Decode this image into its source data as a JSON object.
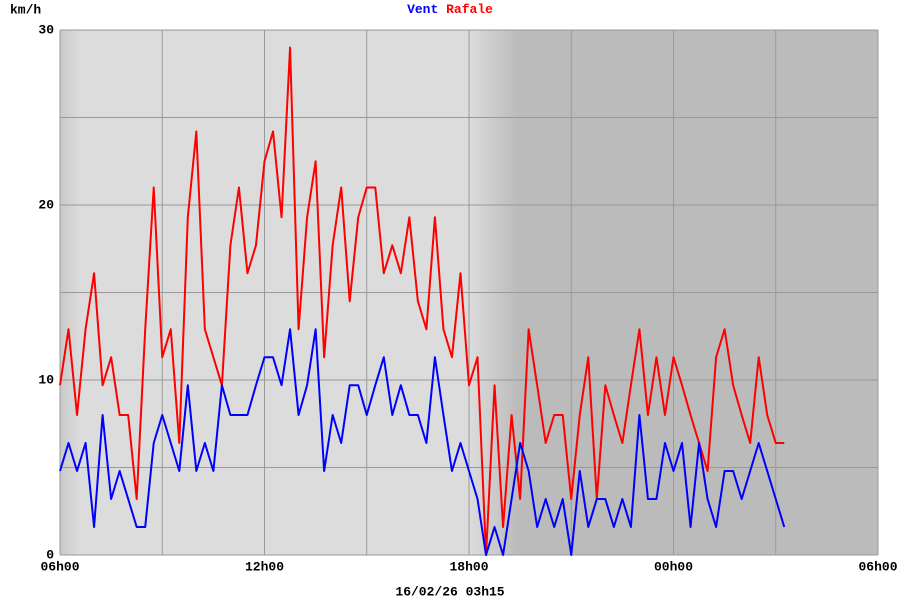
{
  "chart_data": {
    "type": "line",
    "y_label": "km/h",
    "x_label": "16/02/26 03h15",
    "x": [
      0,
      0.25,
      0.5,
      0.75,
      1,
      1.25,
      1.5,
      1.75,
      2,
      2.25,
      2.5,
      2.75,
      3,
      3.25,
      3.5,
      3.75,
      4,
      4.25,
      4.5,
      4.75,
      5,
      5.25,
      5.5,
      5.75,
      6,
      6.25,
      6.5,
      6.75,
      7,
      7.25,
      7.5,
      7.75,
      8,
      8.25,
      8.5,
      8.75,
      9,
      9.25,
      9.5,
      9.75,
      10,
      10.25,
      10.5,
      10.75,
      11,
      11.25,
      11.5,
      11.75,
      12,
      12.25,
      12.5,
      12.75,
      13,
      13.25,
      13.5,
      13.75,
      14,
      14.25,
      14.5,
      14.75,
      15,
      15.25,
      15.5,
      15.75,
      16,
      16.25,
      16.5,
      16.75,
      17,
      17.25,
      17.5,
      17.75,
      18,
      18.25,
      18.5,
      18.75,
      19,
      19.25,
      19.5,
      19.75,
      20,
      20.25,
      20.5,
      20.75,
      21,
      21.25
    ],
    "series": [
      {
        "name": "Vent",
        "color": "#0000ff",
        "values": [
          4.8,
          6.4,
          4.8,
          6.4,
          1.6,
          8,
          3.2,
          4.8,
          3.2,
          1.6,
          1.6,
          6.4,
          8,
          6.4,
          4.8,
          9.7,
          4.8,
          6.4,
          4.8,
          9.7,
          8,
          8,
          8,
          9.7,
          11.3,
          11.3,
          9.7,
          12.9,
          8,
          9.7,
          12.9,
          4.8,
          8,
          6.4,
          9.7,
          9.7,
          8,
          9.7,
          11.3,
          8,
          9.7,
          8,
          8,
          6.4,
          11.3,
          8,
          4.8,
          6.4,
          4.8,
          3.2,
          0,
          1.6,
          0,
          3.2,
          6.4,
          4.8,
          1.6,
          3.2,
          1.6,
          3.2,
          0,
          4.8,
          1.6,
          3.2,
          3.2,
          1.6,
          3.2,
          1.6,
          8,
          3.2,
          3.2,
          6.4,
          4.8,
          6.4,
          1.6,
          6.4,
          3.2,
          1.6,
          4.8,
          4.8,
          3.2,
          4.8,
          6.4,
          4.8,
          3.2,
          1.6
        ]
      },
      {
        "name": "Rafale",
        "color": "#ff0000",
        "values": [
          9.7,
          12.9,
          8,
          12.9,
          16.1,
          9.7,
          11.3,
          8,
          8,
          3.2,
          12.9,
          21,
          11.3,
          12.9,
          6.4,
          19.3,
          24.2,
          12.9,
          11.3,
          9.7,
          17.7,
          21,
          16.1,
          17.7,
          22.5,
          24.2,
          19.3,
          29,
          12.9,
          19.3,
          22.5,
          11.3,
          17.7,
          21,
          14.5,
          19.3,
          21,
          21,
          16.1,
          17.7,
          16.1,
          19.3,
          14.5,
          12.9,
          19.3,
          12.9,
          11.3,
          16.1,
          9.7,
          11.3,
          0,
          9.7,
          1.6,
          8,
          3.2,
          12.9,
          9.7,
          6.4,
          8,
          8,
          3.2,
          8,
          11.3,
          3.2,
          9.7,
          8,
          6.4,
          9.7,
          12.9,
          8,
          11.3,
          8,
          11.3,
          9.7,
          8,
          6.4,
          4.8,
          11.3,
          12.9,
          9.7,
          8,
          6.4,
          11.3,
          8,
          6.4,
          6.4
        ]
      }
    ],
    "xlim": [
      0,
      24
    ],
    "xticks": [
      {
        "value": 0,
        "label": "06h00"
      },
      {
        "value": 6,
        "label": "12h00"
      },
      {
        "value": 12,
        "label": "18h00"
      },
      {
        "value": 18,
        "label": "00h00"
      },
      {
        "value": 24,
        "label": "06h00"
      }
    ],
    "xminorticks": [
      3,
      9,
      15,
      21
    ],
    "ylim": [
      0,
      30
    ],
    "yticks": [
      0,
      10,
      20,
      30
    ],
    "yminorticks": [
      5,
      15,
      25
    ],
    "grid": true
  }
}
